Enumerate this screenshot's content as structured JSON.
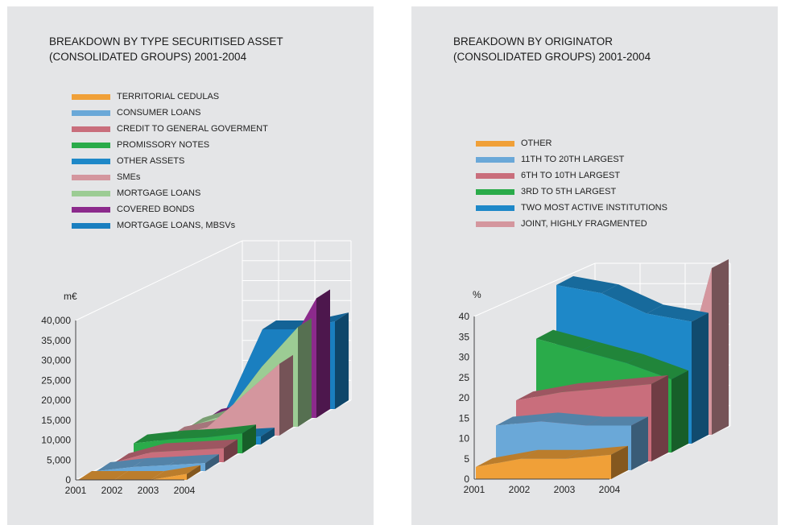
{
  "chart_data": [
    {
      "type": "area",
      "title": "BREAKDOWN BY TYPE SECURITISED ASSET",
      "subtitle": "(CONSOLIDATED GROUPS) 2001-2004",
      "ylabel": "m€",
      "ylim": [
        0,
        40000
      ],
      "yticks": [
        "0",
        "5,000",
        "10,000",
        "15,000",
        "20,000",
        "25,000",
        "30,000",
        "35,000",
        "40,000"
      ],
      "categories": [
        "2001",
        "2002",
        "2003",
        "2004"
      ],
      "grid": true,
      "legend_position": "top",
      "series": [
        {
          "name": "TERRITORIAL CEDULAS",
          "color": "#f0a038",
          "values": [
            0,
            0,
            0,
            1500
          ]
        },
        {
          "name": "CONSUMER LOANS",
          "color": "#6aa8d8",
          "values": [
            0,
            1000,
            1500,
            2000
          ]
        },
        {
          "name": "CREDIT TO GENERAL GOVERMENT",
          "color": "#c96e7c",
          "values": [
            0,
            2500,
            3000,
            3500
          ]
        },
        {
          "name": "PROMISSORY NOTES",
          "color": "#2aab4a",
          "values": [
            2500,
            3500,
            4000,
            5000
          ]
        },
        {
          "name": "OTHER ASSETS",
          "color": "#1e88c8",
          "values": [
            0,
            1000,
            1500,
            2000
          ]
        },
        {
          "name": "SMEs",
          "color": "#d4969e",
          "values": [
            0,
            2000,
            10000,
            18000
          ]
        },
        {
          "name": "MORTGAGE LOANS",
          "color": "#9ccc94",
          "values": [
            0,
            3000,
            15000,
            25000
          ]
        },
        {
          "name": "COVERED BONDS",
          "color": "#8c2a8c",
          "values": [
            0,
            2000,
            14000,
            30000
          ]
        },
        {
          "name": "MORTGAGE LOANS, MBSVs",
          "color": "#1a7fc0",
          "values": [
            0,
            20000,
            20000,
            22000
          ]
        }
      ]
    },
    {
      "type": "area",
      "title": "BREAKDOWN BY ORIGINATOR",
      "subtitle": "(CONSOLIDATED GROUPS) 2001-2004",
      "ylabel": "%",
      "ylim": [
        0,
        40
      ],
      "yticks": [
        "0",
        "5",
        "10",
        "15",
        "20",
        "25",
        "30",
        "35",
        "40"
      ],
      "categories": [
        "2001",
        "2002",
        "2003",
        "2004"
      ],
      "grid": true,
      "legend_position": "top",
      "series": [
        {
          "name": "OTHER",
          "color": "#f0a038",
          "values": [
            3,
            5,
            5,
            6
          ]
        },
        {
          "name": "11TH TO 20TH LARGEST",
          "color": "#6aa8d8",
          "values": [
            11,
            12,
            11,
            11
          ]
        },
        {
          "name": "6TH TO 10TH LARGEST",
          "color": "#c96e7c",
          "values": [
            15,
            17,
            18,
            19
          ]
        },
        {
          "name": "3RD TO 5TH LARGEST",
          "color": "#2aab4a",
          "values": [
            28,
            25,
            22,
            18
          ]
        },
        {
          "name": "TWO MOST ACTIVE INSTITUTIONS",
          "color": "#1e88c8",
          "values": [
            39,
            37,
            32,
            30
          ]
        },
        {
          "name": "JOINT, HIGHLY FRAGMENTED",
          "color": "#d4969e",
          "values": [
            0,
            0,
            0,
            41
          ]
        }
      ]
    }
  ]
}
